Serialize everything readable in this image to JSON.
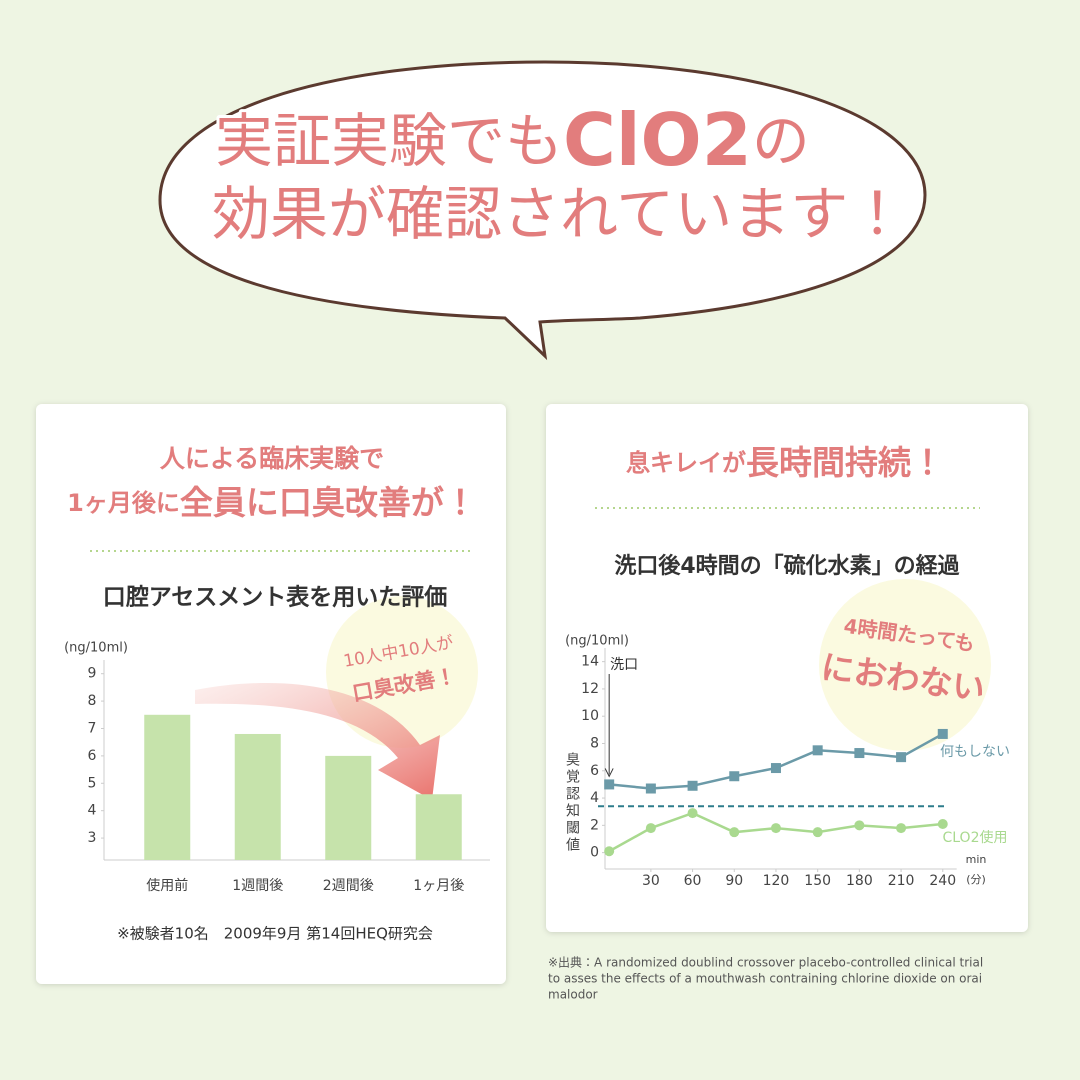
{
  "header": {
    "line1": [
      "実証実験でも",
      "ClO2",
      "の"
    ],
    "line2": "効果が確認されています！"
  },
  "left_panel": {
    "headline1": "人による臨床実験で",
    "headline2": [
      "1ヶ月後に",
      "全員に口臭改善が！"
    ]
  },
  "right_panel": {
    "headline": [
      "息キレイが",
      "長時間持続！"
    ]
  },
  "source_lines": [
    "※出典：A randomized doublind crossover placebo-controlled clinical trial",
    "to asses the effects of a mouthwash contraining chlorine dioxide on orai",
    "malodor"
  ],
  "chart_data": [
    {
      "type": "bar",
      "title": "口腔アセスメント表を用いた評価",
      "ylabel": "(ng/10ml)",
      "categories": [
        "使用前",
        "1週間後",
        "2週間後",
        "1ヶ月後"
      ],
      "values": [
        7.5,
        6.8,
        6.0,
        4.6
      ],
      "color": "#c6e3ab",
      "ylim": [
        2.2,
        9.5
      ],
      "yticks": [
        3,
        4,
        5,
        6,
        7,
        8,
        9
      ],
      "annotations": [
        "10人中10人が",
        "口臭改善！"
      ],
      "note": "※被験者10名　2009年9月 第14回HEQ研究会"
    },
    {
      "type": "line",
      "title": "洗口後4時間の「硫化水素」の経過",
      "ylabel": "(ng/10ml)",
      "ylabel_vertical": "臭覚認知閾値",
      "xlabel": "min",
      "xlabel_note": "(分)",
      "x": [
        0,
        30,
        60,
        90,
        120,
        150,
        180,
        210,
        240
      ],
      "series": [
        {
          "name": "何もしない",
          "color": "#6b9aa8",
          "marker": "square",
          "values": [
            5.0,
            4.7,
            4.9,
            5.6,
            6.2,
            7.5,
            7.3,
            7.0,
            8.7
          ]
        },
        {
          "name": "CLO2使用",
          "color": "#a9d98f",
          "marker": "circle",
          "values": [
            0.1,
            1.8,
            2.9,
            1.5,
            1.8,
            1.5,
            2.0,
            1.8,
            2.1
          ]
        }
      ],
      "reference_line": 3.4,
      "reference_color": "#2d7c8b",
      "xlim": [
        -3,
        250
      ],
      "ylim": [
        -1.2,
        15
      ],
      "xticks": [
        30,
        60,
        90,
        120,
        150,
        180,
        210,
        240
      ],
      "yticks": [
        0,
        2,
        4,
        6,
        8,
        10,
        12,
        14
      ],
      "wash_label": "洗口",
      "annotations": [
        "4時間たっても",
        "におわない"
      ]
    }
  ]
}
